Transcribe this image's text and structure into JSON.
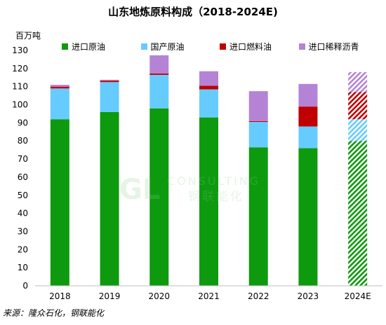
{
  "title": "山东地炼原料构成（2018-2024E)",
  "source": "来源：隆众石化，钢联能化",
  "watermark": {
    "logo_text": "GL",
    "line1": "CONSULTING",
    "line2": "钢联能化"
  },
  "colors": {
    "import_crude": "#0e9a0e",
    "domestic_crude": "#66ccff",
    "import_fuel_oil": "#c00000",
    "import_diluted_bitumen": "#b583d6"
  },
  "chart_data": {
    "type": "bar",
    "stacked": true,
    "categories": [
      "2018",
      "2019",
      "2020",
      "2021",
      "2022",
      "2023",
      "2024E"
    ],
    "ylabel": "百万吨",
    "ylim": [
      0,
      130
    ],
    "yticks": [
      0,
      10,
      20,
      30,
      40,
      50,
      60,
      70,
      80,
      90,
      100,
      110,
      120,
      130
    ],
    "legend_position": "top",
    "grid": false,
    "hatched_categories": [
      "2024E"
    ],
    "series": [
      {
        "name": "进口原油",
        "color": "#0e9a0e",
        "values": [
          92,
          96,
          98,
          93,
          76.5,
          76,
          80
        ]
      },
      {
        "name": "国产原油",
        "color": "#66ccff",
        "values": [
          17,
          16.5,
          18.5,
          15.5,
          14,
          12,
          12
        ]
      },
      {
        "name": "进口燃料油",
        "color": "#c00000",
        "values": [
          1,
          0.8,
          0.8,
          2,
          0.5,
          11,
          15
        ]
      },
      {
        "name": "进口稀释沥青",
        "color": "#b583d6",
        "values": [
          1,
          0.5,
          10,
          8,
          16.5,
          12.5,
          11
        ]
      }
    ]
  }
}
